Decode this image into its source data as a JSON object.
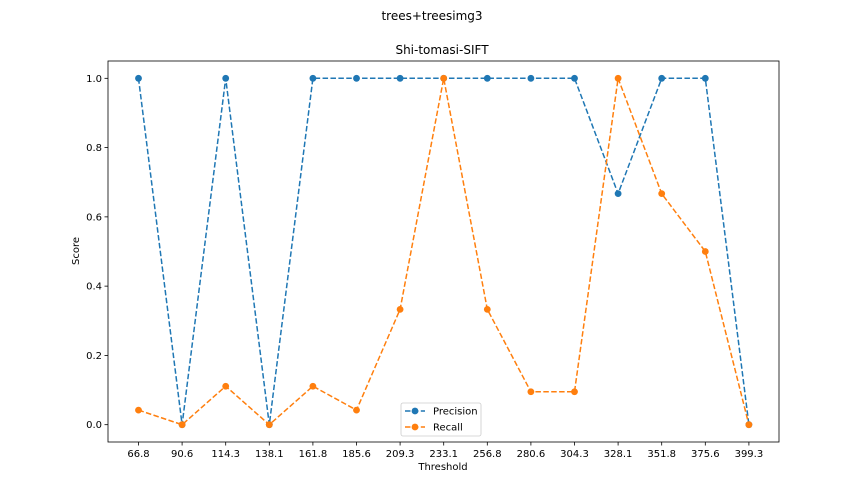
{
  "figure": {
    "suptitle": "trees+treesimg3"
  },
  "chart_data": {
    "type": "line",
    "title": "Shi-tomasi-SIFT",
    "xlabel": "Threshold",
    "ylabel": "Score",
    "categories": [
      "66.8",
      "90.6",
      "114.3",
      "138.1",
      "161.8",
      "185.6",
      "209.3",
      "233.1",
      "256.8",
      "280.6",
      "304.3",
      "328.1",
      "351.8",
      "375.6",
      "399.3"
    ],
    "y_ticks": [
      "0.0",
      "0.2",
      "0.4",
      "0.6",
      "0.8",
      "1.0"
    ],
    "ylim": [
      -0.05,
      1.05
    ],
    "grid": false,
    "legend_position": "bottom-center",
    "series": [
      {
        "name": "Precision",
        "color": "#1f77b4",
        "values": [
          1.0,
          0.0,
          1.0,
          0.0,
          1.0,
          1.0,
          1.0,
          1.0,
          1.0,
          1.0,
          1.0,
          0.667,
          1.0,
          1.0,
          0.0
        ]
      },
      {
        "name": "Recall",
        "color": "#ff7f0e",
        "values": [
          0.042,
          0.0,
          0.111,
          0.0,
          0.111,
          0.042,
          0.333,
          1.0,
          0.333,
          0.095,
          0.095,
          1.0,
          0.667,
          0.5,
          0.0
        ]
      }
    ]
  }
}
